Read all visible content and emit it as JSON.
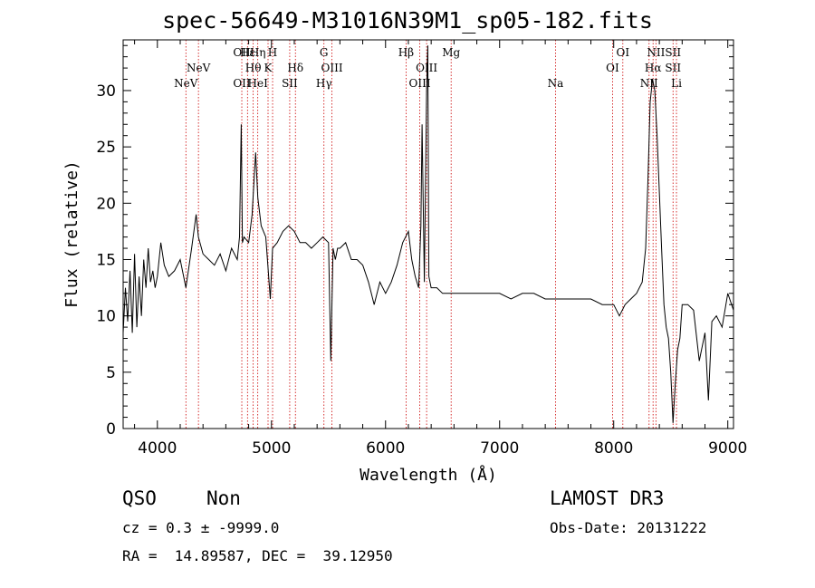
{
  "chart_data": {
    "type": "line",
    "title": "spec-56649-M31016N39M1_sp05-182.fits",
    "xlabel": "Wavelength (Å)",
    "ylabel": "Flux (relative)",
    "xlim": [
      3700,
      9050
    ],
    "ylim": [
      0,
      34.5
    ],
    "xticks": [
      4000,
      5000,
      6000,
      7000,
      8000,
      9000
    ],
    "yticks": [
      0,
      5,
      10,
      15,
      20,
      25,
      30
    ],
    "grid": false,
    "series": [
      {
        "x": [
          3700,
          3720,
          3740,
          3760,
          3780,
          3800,
          3820,
          3840,
          3860,
          3880,
          3900,
          3920,
          3940,
          3960,
          3980,
          4000,
          4030,
          4060,
          4100,
          4150,
          4200,
          4250,
          4300,
          4340,
          4360,
          4400,
          4450,
          4500,
          4550,
          4600,
          4650,
          4700,
          4720,
          4735,
          4745,
          4760,
          4800,
          4830,
          4861,
          4880,
          4910,
          4950,
          4990,
          5010,
          5050,
          5100,
          5150,
          5200,
          5250,
          5300,
          5350,
          5400,
          5450,
          5500,
          5520,
          5540,
          5560,
          5580,
          5600,
          5650,
          5700,
          5750,
          5800,
          5850,
          5900,
          5950,
          6000,
          6050,
          6100,
          6150,
          6200,
          6230,
          6260,
          6290,
          6310,
          6320,
          6340,
          6360,
          6370,
          6380,
          6400,
          6450,
          6500,
          6600,
          6700,
          6800,
          6900,
          7000,
          7100,
          7200,
          7300,
          7400,
          7500,
          7600,
          7700,
          7800,
          7900,
          8000,
          8050,
          8100,
          8150,
          8200,
          8250,
          8280,
          8300,
          8320,
          8340,
          8360,
          8380,
          8400,
          8420,
          8440,
          8460,
          8480,
          8500,
          8520,
          8540,
          8560,
          8580,
          8600,
          8650,
          8700,
          8750,
          8800,
          8830,
          8860,
          8900,
          8950,
          9000,
          9050
        ],
        "y": [
          8.5,
          12.5,
          9.5,
          14.0,
          8.5,
          15.5,
          9.0,
          13.5,
          10.0,
          15.0,
          12.5,
          16.0,
          13.0,
          14.0,
          12.5,
          13.5,
          16.5,
          14.5,
          13.5,
          14.0,
          15.0,
          12.5,
          16.0,
          19.0,
          17.0,
          15.5,
          15.0,
          14.5,
          15.5,
          14.0,
          16.0,
          15.0,
          17.0,
          27.0,
          16.5,
          17.0,
          16.5,
          19.0,
          24.5,
          20.5,
          18.0,
          17.0,
          11.5,
          16.0,
          16.5,
          17.5,
          18.0,
          17.5,
          16.5,
          16.5,
          16.0,
          16.5,
          17.0,
          16.5,
          6.0,
          16.0,
          15.0,
          16.0,
          16.0,
          16.5,
          15.0,
          15.0,
          14.5,
          13.0,
          11.0,
          13.0,
          12.0,
          13.0,
          14.5,
          16.5,
          17.5,
          15.0,
          13.5,
          12.5,
          18.0,
          27.0,
          13.0,
          30.0,
          34.0,
          13.5,
          12.5,
          12.5,
          12.0,
          12.0,
          12.0,
          12.0,
          12.0,
          12.0,
          11.5,
          12.0,
          12.0,
          11.5,
          11.5,
          11.5,
          11.5,
          11.5,
          11.0,
          11.0,
          10.0,
          11.0,
          11.5,
          12.0,
          13.0,
          16.0,
          22.0,
          29.0,
          31.0,
          30.0,
          26.0,
          21.0,
          16.0,
          11.0,
          9.0,
          8.0,
          5.0,
          0.5,
          4.0,
          7.0,
          8.0,
          11.0,
          11.0,
          10.5,
          6.0,
          8.5,
          2.5,
          9.5,
          10.0,
          9.0,
          12.0,
          10.5
        ]
      }
    ],
    "lines": [
      {
        "x": 4250,
        "labels": [
          "NeV"
        ],
        "rows": [
          2
        ]
      },
      {
        "x": 4360,
        "labels": [
          "NeV"
        ],
        "rows": [
          1
        ]
      },
      {
        "x": 4740,
        "labels": [
          "OII",
          "OII"
        ],
        "rows": [
          0,
          2
        ]
      },
      {
        "x": 4790,
        "labels": [
          "Hε"
        ],
        "rows": [
          0
        ]
      },
      {
        "x": 4840,
        "labels": [
          "Hθ"
        ],
        "rows": [
          1
        ]
      },
      {
        "x": 4880,
        "labels": [
          "Hη",
          "HeI"
        ],
        "rows": [
          0,
          2
        ]
      },
      {
        "x": 4970,
        "labels": [
          "K"
        ],
        "rows": [
          1
        ]
      },
      {
        "x": 5010,
        "labels": [
          "H"
        ],
        "rows": [
          0
        ]
      },
      {
        "x": 5160,
        "labels": [
          "SII"
        ],
        "rows": [
          2
        ]
      },
      {
        "x": 5210,
        "labels": [
          "Hδ"
        ],
        "rows": [
          1
        ]
      },
      {
        "x": 5460,
        "labels": [
          "G",
          "Hγ"
        ],
        "rows": [
          0,
          2
        ]
      },
      {
        "x": 5530,
        "labels": [
          "OIII"
        ],
        "rows": [
          1
        ]
      },
      {
        "x": 6180,
        "labels": [
          "Hβ"
        ],
        "rows": [
          0
        ]
      },
      {
        "x": 6300,
        "labels": [
          "OIII"
        ],
        "rows": [
          2
        ]
      },
      {
        "x": 6360,
        "labels": [
          "OIII"
        ],
        "rows": [
          1
        ]
      },
      {
        "x": 6575,
        "labels": [
          "Mg"
        ],
        "rows": [
          0
        ]
      },
      {
        "x": 7490,
        "labels": [
          "Na"
        ],
        "rows": [
          2
        ]
      },
      {
        "x": 7990,
        "labels": [
          "OI"
        ],
        "rows": [
          1
        ]
      },
      {
        "x": 8080,
        "labels": [
          "OI"
        ],
        "rows": [
          0
        ]
      },
      {
        "x": 8310,
        "labels": [
          "NII"
        ],
        "rows": [
          2
        ]
      },
      {
        "x": 8345,
        "labels": [
          "Hα"
        ],
        "rows": [
          1
        ]
      },
      {
        "x": 8370,
        "labels": [
          "NII"
        ],
        "rows": [
          0
        ]
      },
      {
        "x": 8520,
        "labels": [
          "SII",
          "SII"
        ],
        "rows": [
          0,
          1
        ]
      },
      {
        "x": 8550,
        "labels": [
          "Li"
        ],
        "rows": [
          2
        ]
      }
    ]
  },
  "info": {
    "class": "QSO",
    "subclass": "Non",
    "cz": "cz = 0.3 ± -9999.0",
    "radec": "RA =  14.89587, DEC =  39.12950",
    "survey": "LAMOST DR3",
    "obsdate": "Obs-Date: 20131222"
  },
  "colors": {
    "line": "#000000",
    "marker": "#cc0000"
  }
}
